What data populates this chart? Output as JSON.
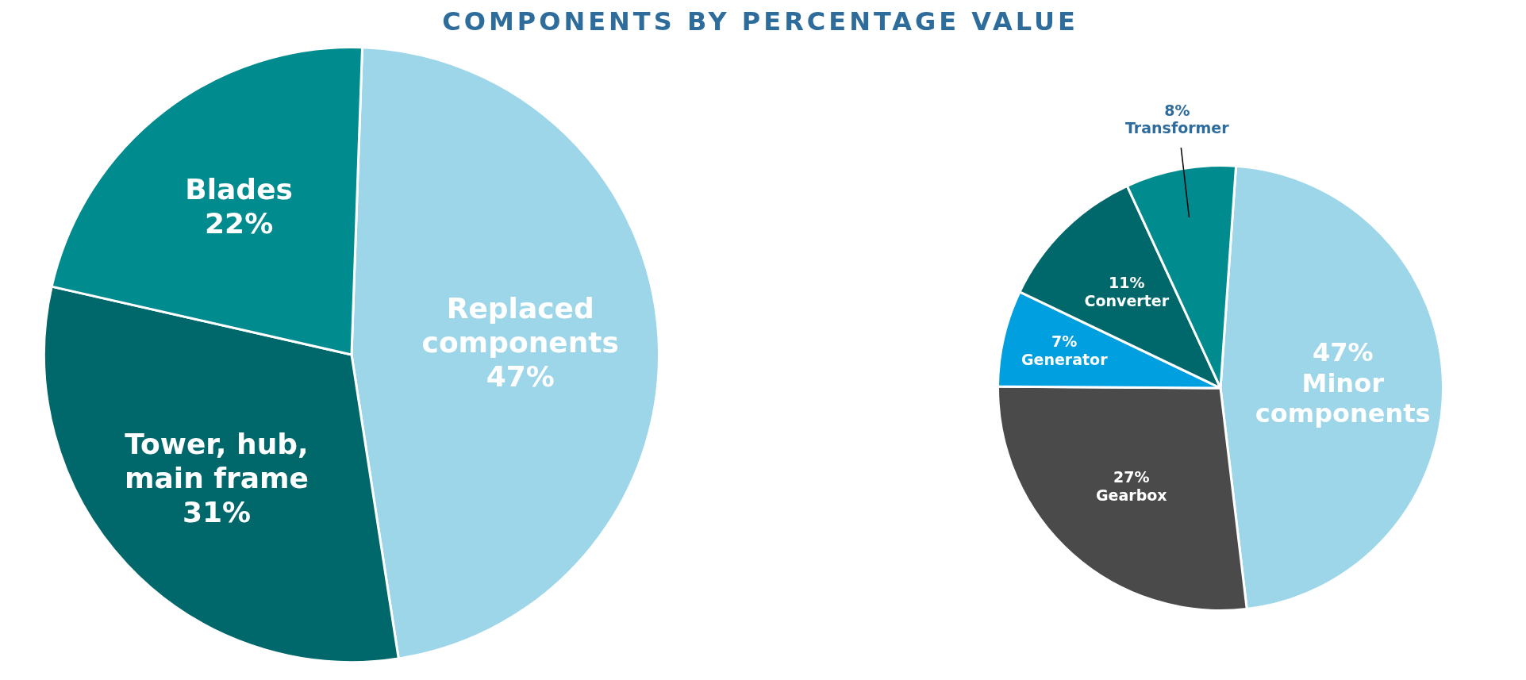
{
  "chart_data": [
    {
      "type": "pie",
      "title": "COMPONENTS BY PERCENTAGE VALUE",
      "categories": [
        "Replaced components",
        "Tower, hub, main frame",
        "Blades"
      ],
      "values": [
        47,
        31,
        22
      ],
      "colors": [
        "#9dd6e9",
        "#00676a",
        "#008b8f"
      ],
      "value_labels": [
        "47%",
        "31%",
        "22%"
      ],
      "legend": false
    },
    {
      "type": "pie",
      "categories": [
        "Minor components",
        "Gearbox",
        "Generator",
        "Converter",
        "Transformer"
      ],
      "values": [
        47,
        27,
        7,
        11,
        8
      ],
      "colors": [
        "#9dd6e9",
        "#4a4a4a",
        "#009fe0",
        "#00676a",
        "#008b8f"
      ],
      "value_labels": [
        "47%",
        "27%",
        "7%",
        "11%",
        "8%"
      ],
      "legend": false
    }
  ]
}
